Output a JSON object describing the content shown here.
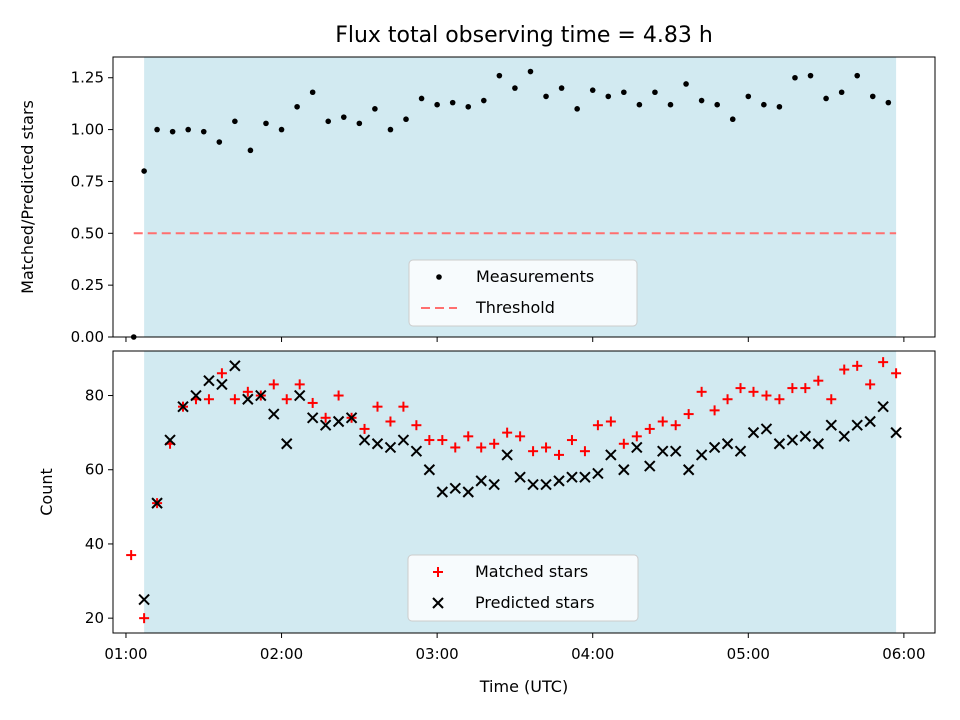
{
  "chart_data": [
    {
      "type": "scatter",
      "title": "Flux total observing time = 4.83 h",
      "xlabel": "",
      "ylabel": "Matched/Predicted stars",
      "xlim": [
        "00:55",
        "06:12"
      ],
      "ylim": [
        0,
        1.35
      ],
      "yticks": [
        "0.00",
        "0.25",
        "0.50",
        "0.75",
        "1.00",
        "1.25"
      ],
      "shaded_x": [
        "01:07",
        "05:57"
      ],
      "shade_color": "#add8e6",
      "legend": "lower center",
      "legend_labels": [
        "Measurements",
        "Threshold"
      ],
      "series": [
        {
          "name": "Measurements",
          "marker": "dot",
          "color": "#000000",
          "x": [
            "01:03",
            "01:07",
            "01:12",
            "01:18",
            "01:24",
            "01:30",
            "01:36",
            "01:42",
            "01:48",
            "01:54",
            "02:00",
            "02:06",
            "02:12",
            "02:18",
            "02:24",
            "02:30",
            "02:36",
            "02:42",
            "02:48",
            "02:54",
            "03:00",
            "03:06",
            "03:12",
            "03:18",
            "03:24",
            "03:30",
            "03:36",
            "03:42",
            "03:48",
            "03:54",
            "04:00",
            "04:06",
            "04:12",
            "04:18",
            "04:24",
            "04:30",
            "04:36",
            "04:42",
            "04:48",
            "04:54",
            "05:00",
            "05:06",
            "05:12",
            "05:18",
            "05:24",
            "05:30",
            "05:36",
            "05:42",
            "05:48",
            "05:54"
          ],
          "y": [
            0.0,
            0.8,
            1.0,
            0.99,
            1.0,
            0.99,
            0.94,
            1.04,
            0.9,
            1.03,
            1.0,
            1.11,
            1.18,
            1.04,
            1.06,
            1.03,
            1.1,
            1.0,
            1.05,
            1.15,
            1.12,
            1.13,
            1.11,
            1.14,
            1.26,
            1.2,
            1.28,
            1.16,
            1.2,
            1.1,
            1.19,
            1.16,
            1.18,
            1.12,
            1.18,
            1.12,
            1.22,
            1.14,
            1.12,
            1.05,
            1.16,
            1.12,
            1.11,
            1.25,
            1.26,
            1.15,
            1.18,
            1.26,
            1.16,
            1.13
          ]
        },
        {
          "name": "Threshold",
          "marker": "dashed-line",
          "color": "#ff6f6f",
          "x": [
            "01:03",
            "05:57"
          ],
          "y": [
            0.5,
            0.5
          ]
        }
      ]
    },
    {
      "type": "scatter",
      "title": "",
      "xlabel": "Time (UTC)",
      "ylabel": "Count",
      "xlim": [
        "00:55",
        "06:12"
      ],
      "ylim": [
        16,
        92
      ],
      "yticks": [
        "20",
        "40",
        "60",
        "80"
      ],
      "xticks": [
        "01:00",
        "02:00",
        "03:00",
        "04:00",
        "05:00",
        "06:00"
      ],
      "shaded_x": [
        "01:07",
        "05:57"
      ],
      "shade_color": "#add8e6",
      "legend": "lower center",
      "legend_labels": [
        "Matched stars",
        "Predicted stars"
      ],
      "series": [
        {
          "name": "Matched stars",
          "marker": "plus",
          "color": "#ff0000",
          "x": [
            "01:02",
            "01:07",
            "01:12",
            "01:17",
            "01:22",
            "01:27",
            "01:32",
            "01:37",
            "01:42",
            "01:47",
            "01:52",
            "01:57",
            "02:02",
            "02:07",
            "02:12",
            "02:17",
            "02:22",
            "02:27",
            "02:32",
            "02:37",
            "02:42",
            "02:47",
            "02:52",
            "02:57",
            "03:02",
            "03:07",
            "03:12",
            "03:17",
            "03:22",
            "03:27",
            "03:32",
            "03:37",
            "03:42",
            "03:47",
            "03:52",
            "03:57",
            "04:02",
            "04:07",
            "04:12",
            "04:17",
            "04:22",
            "04:27",
            "04:32",
            "04:37",
            "04:42",
            "04:47",
            "04:52",
            "04:57",
            "05:02",
            "05:07",
            "05:12",
            "05:17",
            "05:22",
            "05:27",
            "05:32",
            "05:37",
            "05:42",
            "05:47",
            "05:52",
            "05:57"
          ],
          "y": [
            37,
            20,
            51,
            67,
            77,
            79,
            79,
            86,
            79,
            81,
            80,
            83,
            79,
            83,
            78,
            74,
            80,
            74,
            71,
            77,
            73,
            77,
            72,
            68,
            68,
            66,
            69,
            66,
            67,
            70,
            69,
            65,
            66,
            64,
            68,
            65,
            72,
            73,
            67,
            69,
            71,
            73,
            72,
            75,
            81,
            76,
            79,
            82,
            81,
            80,
            79,
            82,
            82,
            84,
            79,
            87,
            88,
            83,
            89,
            86
          ]
        },
        {
          "name": "Predicted stars",
          "marker": "x",
          "color": "#000000",
          "x": [
            "01:07",
            "01:12",
            "01:17",
            "01:22",
            "01:27",
            "01:32",
            "01:37",
            "01:42",
            "01:47",
            "01:52",
            "01:57",
            "02:02",
            "02:07",
            "02:12",
            "02:17",
            "02:22",
            "02:27",
            "02:32",
            "02:37",
            "02:42",
            "02:47",
            "02:52",
            "02:57",
            "03:02",
            "03:07",
            "03:12",
            "03:17",
            "03:22",
            "03:27",
            "03:32",
            "03:37",
            "03:42",
            "03:47",
            "03:52",
            "03:57",
            "04:02",
            "04:07",
            "04:12",
            "04:17",
            "04:22",
            "04:27",
            "04:32",
            "04:37",
            "04:42",
            "04:47",
            "04:52",
            "04:57",
            "05:02",
            "05:07",
            "05:12",
            "05:17",
            "05:22",
            "05:27",
            "05:32",
            "05:37",
            "05:42",
            "05:47",
            "05:52",
            "05:57"
          ],
          "y": [
            25,
            51,
            68,
            77,
            80,
            84,
            83,
            88,
            79,
            80,
            75,
            67,
            80,
            74,
            72,
            73,
            74,
            68,
            67,
            66,
            68,
            65,
            60,
            54,
            55,
            54,
            57,
            56,
            64,
            58,
            56,
            56,
            57,
            58,
            58,
            59,
            64,
            60,
            66,
            61,
            65,
            65,
            60,
            64,
            66,
            67,
            65,
            70,
            71,
            67,
            68,
            69,
            67,
            72,
            69,
            72,
            73,
            77,
            70
          ]
        }
      ]
    }
  ]
}
